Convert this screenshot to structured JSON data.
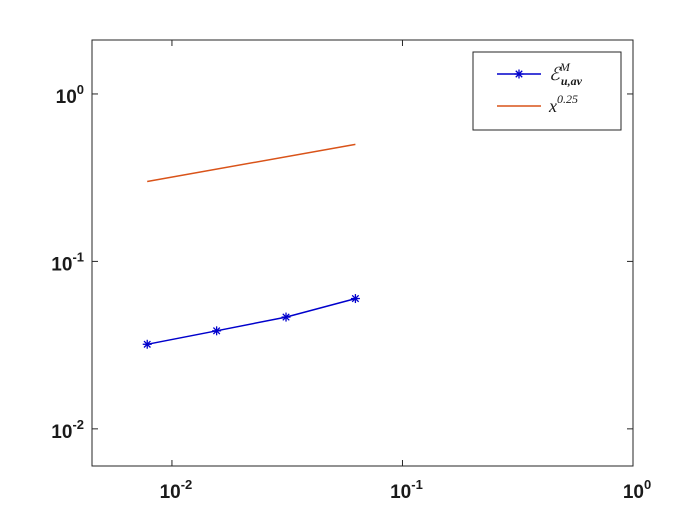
{
  "chart_data": {
    "type": "line",
    "xscale": "log",
    "yscale": "log",
    "xlim": [
      0.0045,
      1.0
    ],
    "ylim": [
      0.006,
      2.1
    ],
    "xticks": [
      {
        "value": 0.01,
        "base": "10",
        "exp": "-2"
      },
      {
        "value": 0.1,
        "base": "10",
        "exp": "-1"
      },
      {
        "value": 1,
        "base": "10",
        "exp": "0"
      }
    ],
    "yticks": [
      {
        "value": 0.01,
        "base": "10",
        "exp": "-2"
      },
      {
        "value": 0.1,
        "base": "10",
        "exp": "-1"
      },
      {
        "value": 1,
        "base": "10",
        "exp": "0"
      }
    ],
    "grid": false,
    "legend_position": "top-right",
    "series": [
      {
        "name": "E_{u,av}^M",
        "legend": {
          "main": "ℰ",
          "sup": "M",
          "sub": "u,av"
        },
        "color": "#0000cc",
        "marker": "asterisk",
        "x": [
          0.0078125,
          0.015625,
          0.03125,
          0.0625
        ],
        "y": [
          0.032,
          0.0385,
          0.0465,
          0.06
        ]
      },
      {
        "name": "x^{0.25}",
        "legend": {
          "main": "x",
          "sup": "0.25",
          "sub": ""
        },
        "color": "#d95319",
        "marker": "none",
        "x": [
          0.0078125,
          0.0625
        ],
        "y": [
          0.3,
          0.5
        ]
      }
    ]
  }
}
